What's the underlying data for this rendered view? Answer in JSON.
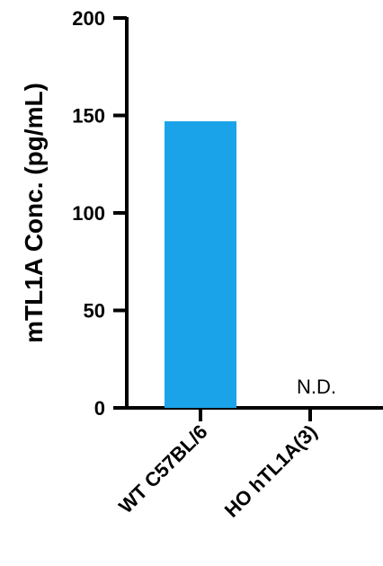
{
  "chart_data": {
    "type": "bar",
    "categories": [
      "WT C57BL/6",
      "HO hTL1A(3)"
    ],
    "values": [
      147,
      0
    ],
    "annotations": [
      "",
      "N.D."
    ],
    "ylabel": "mTL1A Conc. (pg/mL)",
    "ylim": [
      0,
      200
    ],
    "yticks": [
      0,
      50,
      100,
      150,
      200
    ],
    "colors": {
      "bar": "#1aa3e8",
      "axis": "#000000"
    },
    "grid": false
  }
}
